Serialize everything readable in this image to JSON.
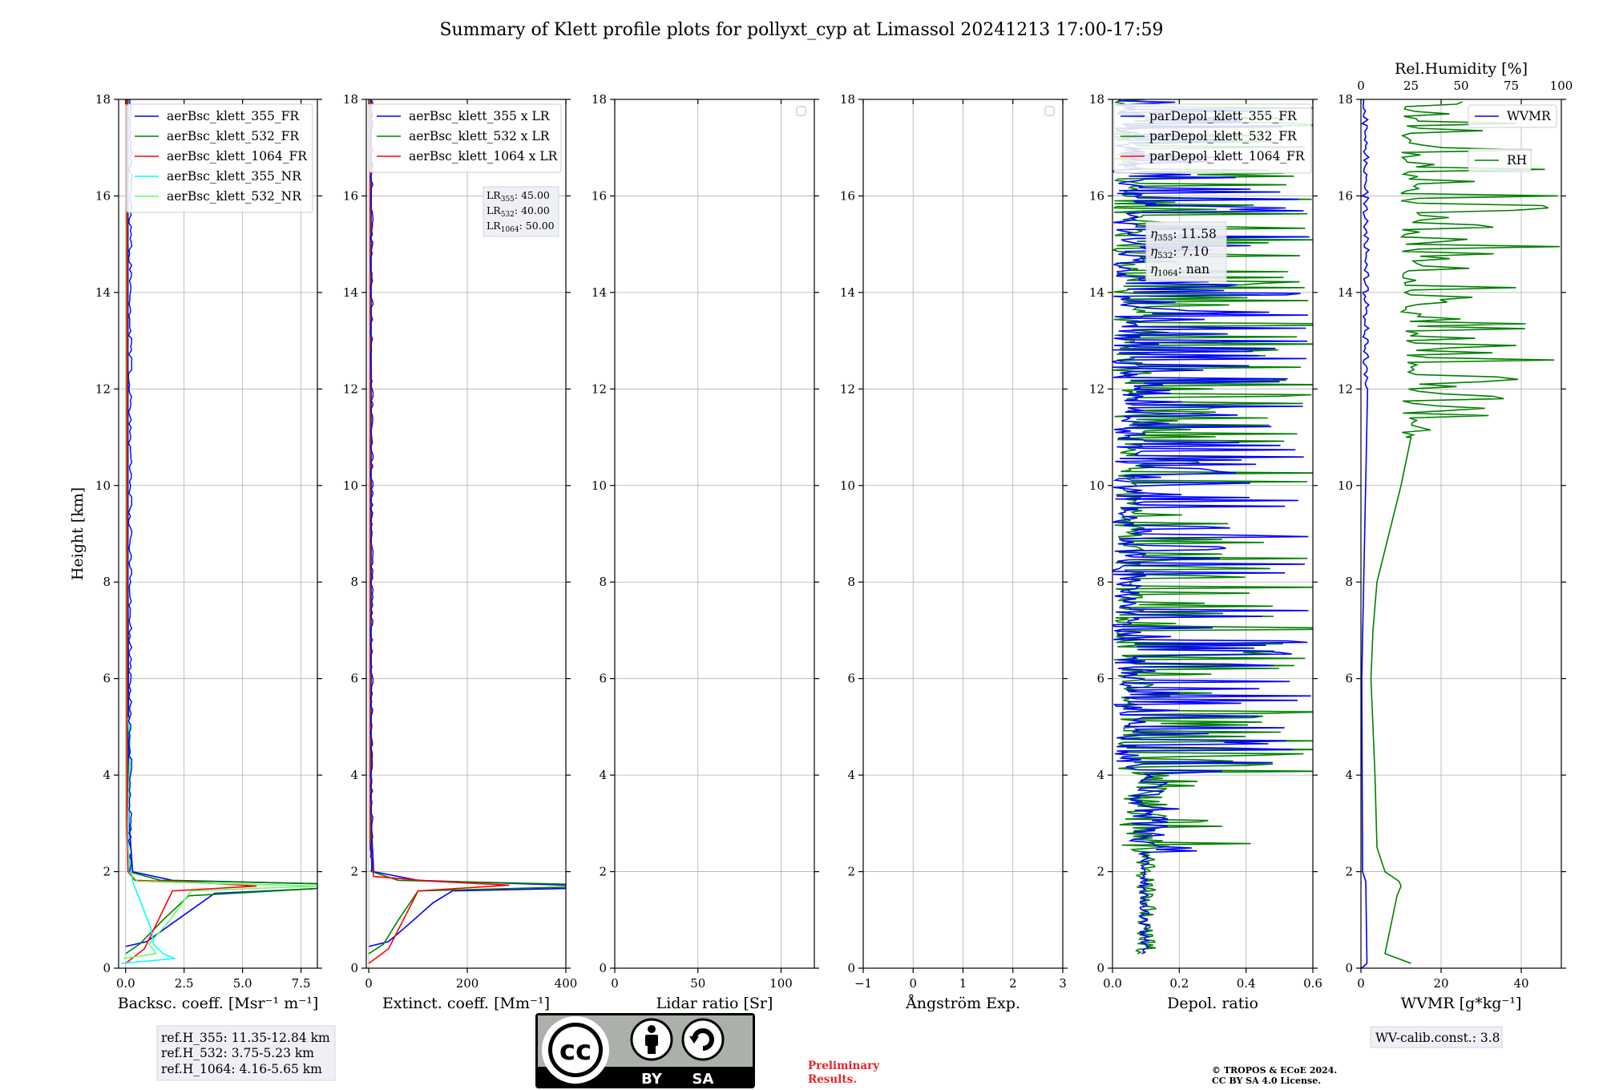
{
  "page": {
    "title": "Summary of Klett profile plots for pollyxt_cyp at Limassol 20241213 17:00-17:59"
  },
  "chart_data": [
    {
      "type": "line",
      "id": "bsc",
      "xlabel": "Backsc. coeff. [Msr⁻¹ m⁻¹]",
      "ylabel": "Height [km]",
      "xlim": [
        -0.3,
        8.2
      ],
      "ylim": [
        0,
        18
      ],
      "xticks": [
        0.0,
        2.5,
        5.0,
        7.5
      ],
      "xticklabels": [
        "0.0",
        "2.5",
        "5.0",
        "7.5"
      ],
      "yticks": [
        0,
        2,
        4,
        6,
        8,
        10,
        12,
        14,
        16,
        18
      ],
      "grid": true,
      "legend_position": "upper-right",
      "series": [
        {
          "name": "aerBsc_klett_355_FR",
          "color": "#0000ff",
          "x": [
            0.0,
            0.9,
            2.2,
            3.8,
            8.2,
            8.2,
            2.0,
            0.3,
            0.15,
            0.1,
            0.1
          ],
          "y": [
            0.45,
            0.55,
            1.0,
            1.55,
            1.65,
            1.75,
            1.82,
            2.0,
            3.0,
            8.0,
            18.0
          ]
        },
        {
          "name": "aerBsc_klett_532_FR",
          "color": "#008000",
          "x": [
            0.0,
            0.6,
            1.6,
            2.7,
            8.2,
            8.2,
            1.5,
            0.15,
            0.08,
            0.08
          ],
          "y": [
            0.3,
            0.5,
            1.0,
            1.5,
            1.65,
            1.75,
            1.82,
            2.0,
            3.0,
            18.0
          ]
        },
        {
          "name": "aerBsc_klett_1064_FR",
          "color": "#ff0000",
          "x": [
            0.0,
            0.8,
            1.3,
            2.0,
            5.6,
            3.0,
            0.4,
            0.1,
            0.05,
            0.05
          ],
          "y": [
            0.1,
            0.4,
            0.9,
            1.6,
            1.7,
            1.78,
            1.82,
            2.0,
            3.0,
            18.0
          ]
        },
        {
          "name": "aerBsc_klett_355_NR",
          "color": "#00ffff",
          "x": [
            -0.2,
            2.1,
            1.6,
            1.2,
            1.1,
            0.3,
            0.1,
            0.15,
            0.2,
            0.1
          ],
          "y": [
            0.1,
            0.2,
            0.3,
            0.5,
            0.8,
            1.8,
            2.5,
            3.5,
            4.5,
            5.2
          ]
        },
        {
          "name": "aerBsc_klett_532_NR",
          "color": "#66ff66",
          "x": [
            -0.1,
            1.3,
            1.0,
            1.9,
            2.8,
            8.2,
            0.5,
            0.15,
            0.1,
            0.2,
            0.15
          ],
          "y": [
            0.2,
            0.3,
            0.5,
            1.0,
            1.6,
            1.7,
            1.8,
            2.0,
            3.0,
            4.9,
            5.0
          ]
        }
      ]
    },
    {
      "type": "line",
      "id": "ext",
      "xlabel": "Extinct. coeff. [Mm⁻¹]",
      "xlim": [
        -5,
        400
      ],
      "ylim": [
        0,
        18
      ],
      "xticks": [
        0,
        200,
        400
      ],
      "xticklabels": [
        "0",
        "200",
        "400"
      ],
      "yticks": [
        0,
        2,
        4,
        6,
        8,
        10,
        12,
        14,
        16,
        18
      ],
      "grid": true,
      "legend_position": "upper-right",
      "lidar_ratios": [
        {
          "label": "LR",
          "sub": "355",
          "value": ": 45.00"
        },
        {
          "label": "LR",
          "sub": "532",
          "value": ": 40.00"
        },
        {
          "label": "LR",
          "sub": "1064",
          "value": ": 50.00"
        }
      ],
      "series": [
        {
          "name": "aerBsc_klett_355 x LR",
          "color": "#0000ff",
          "x": [
            0,
            40,
            80,
            130,
            170,
            400,
            400,
            100,
            10,
            5,
            5
          ],
          "y": [
            0.45,
            0.55,
            0.9,
            1.35,
            1.6,
            1.65,
            1.72,
            1.82,
            2.0,
            3.0,
            18.0
          ]
        },
        {
          "name": "aerBsc_klett_532 x LR",
          "color": "#008000",
          "x": [
            0,
            30,
            60,
            100,
            400,
            400,
            60,
            6,
            4,
            4
          ],
          "y": [
            0.3,
            0.5,
            1.0,
            1.6,
            1.68,
            1.74,
            1.82,
            2.0,
            3.0,
            18.0
          ]
        },
        {
          "name": "aerBsc_klett_1064 x LR",
          "color": "#ff0000",
          "x": [
            0,
            40,
            60,
            100,
            285,
            130,
            10,
            3,
            3
          ],
          "y": [
            0.1,
            0.4,
            0.8,
            1.6,
            1.72,
            1.8,
            1.9,
            2.5,
            18.0
          ]
        }
      ]
    },
    {
      "type": "line",
      "id": "lr",
      "xlabel": "Lidar ratio [Sr]",
      "xlim": [
        0,
        120
      ],
      "ylim": [
        0,
        18
      ],
      "xticks": [
        0,
        50,
        100
      ],
      "xticklabels": [
        "0",
        "50",
        "100"
      ],
      "yticks": [
        0,
        2,
        4,
        6,
        8,
        10,
        12,
        14,
        16,
        18
      ],
      "grid": true,
      "legend_position": "upper-right",
      "series": []
    },
    {
      "type": "line",
      "id": "ang",
      "xlabel": "Ångström Exp.",
      "xlim": [
        -1,
        3
      ],
      "ylim": [
        0,
        18
      ],
      "xticks": [
        -1,
        0,
        1,
        2,
        3
      ],
      "xticklabels": [
        "−1",
        "0",
        "1",
        "2",
        "3"
      ],
      "yticks": [
        0,
        2,
        4,
        6,
        8,
        10,
        12,
        14,
        16,
        18
      ],
      "grid": true,
      "legend_position": "upper-right",
      "series": []
    },
    {
      "type": "line",
      "id": "depol",
      "xlabel": "Depol. ratio",
      "xlim": [
        0,
        0.6
      ],
      "ylim": [
        0,
        18
      ],
      "xticks": [
        0.0,
        0.2,
        0.4,
        0.6
      ],
      "xticklabels": [
        "0.0",
        "0.2",
        "0.4",
        "0.6"
      ],
      "yticks": [
        0,
        2,
        4,
        6,
        8,
        10,
        12,
        14,
        16,
        18
      ],
      "grid": true,
      "legend_position": "upper-left",
      "eta": [
        {
          "sub": "355",
          "value": ": 11.58"
        },
        {
          "sub": "532",
          "value": ": 7.10"
        },
        {
          "sub": "1064",
          "value": ": nan"
        }
      ],
      "series": [
        {
          "name": "parDepol_klett_355_FR",
          "color": "#0000ff"
        },
        {
          "name": "parDepol_klett_532_FR",
          "color": "#008000"
        },
        {
          "name": "parDepol_klett_1064_FR",
          "color": "#ff0000"
        }
      ]
    },
    {
      "type": "line",
      "id": "wv",
      "xlabel": "WVMR [g*kg⁻¹]",
      "top_xlabel": "Rel.Humidity [%]",
      "xlim": [
        0,
        50
      ],
      "top_xlim": [
        0,
        100
      ],
      "ylim": [
        0,
        18
      ],
      "xticks": [
        0,
        20,
        40
      ],
      "xticklabels": [
        "0",
        "20",
        "40"
      ],
      "top_xticks": [
        0,
        25,
        50,
        75,
        100
      ],
      "top_xticklabels": [
        "0",
        "25",
        "50",
        "75",
        "100"
      ],
      "yticks": [
        0,
        2,
        4,
        6,
        8,
        10,
        12,
        14,
        16,
        18
      ],
      "grid": true,
      "series": [
        {
          "name": "WVMR",
          "color": "#0000ff",
          "x": [
            0.2,
            1.5,
            1.2,
            0.4,
            0.2,
            0.5,
            0.2,
            0.3,
            0.1
          ],
          "y": [
            0.0,
            0.1,
            1.8,
            2.0,
            6.0,
            14.0,
            16.0,
            17.5,
            18.0
          ]
        },
        {
          "name": "RH",
          "color": "#008000",
          "x": [
            25,
            12,
            18,
            20,
            19,
            12,
            8,
            7,
            5,
            6,
            8,
            14,
            20,
            25
          ],
          "y": [
            0.1,
            0.3,
            1.5,
            1.7,
            1.8,
            2.0,
            2.5,
            4.0,
            6.0,
            7.0,
            8.0,
            9.0,
            10.0,
            11.0
          ]
        }
      ]
    }
  ],
  "annotations": {
    "refH": [
      "ref.H_355: 11.35-12.84 km",
      "ref.H_532: 3.75-5.23 km",
      "ref.H_1064: 4.16-5.65 km"
    ],
    "wv_calib": "WV-calib.const.: 3.8",
    "prelim_1": "Preliminary",
    "prelim_2": "Results.",
    "copyright_1": "© TROPOS & ECoE 2024.",
    "copyright_2": "CC BY SA 4.0 License.",
    "cc_badge": {
      "cc": "cc",
      "by": "BY",
      "sa": "SA"
    }
  }
}
